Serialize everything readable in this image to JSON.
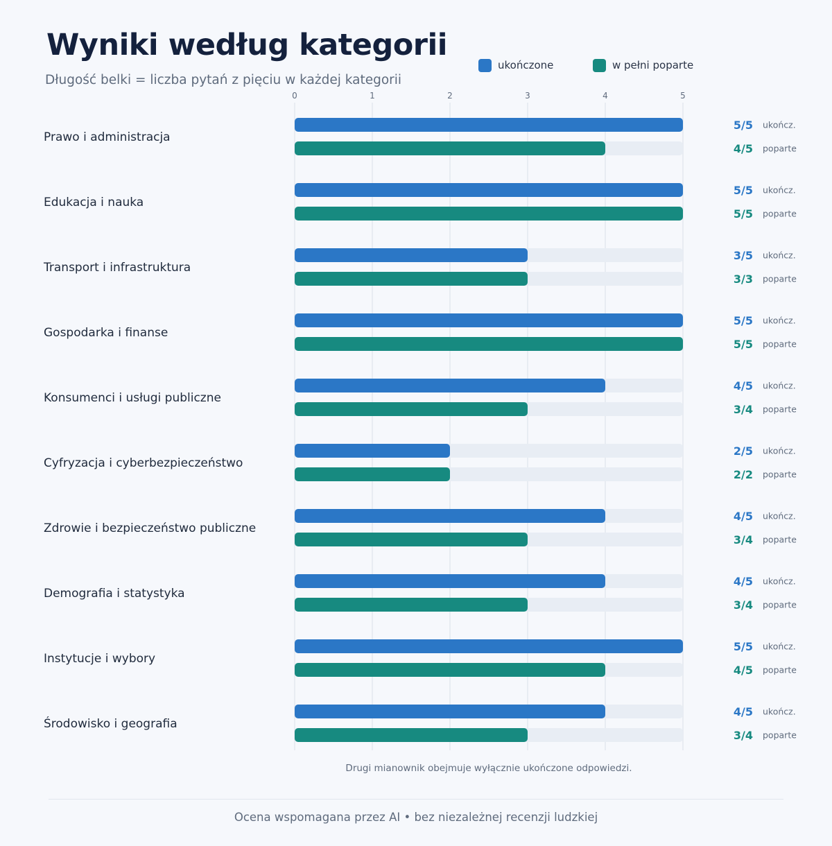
{
  "chart_data": {
    "type": "bar",
    "orientation": "horizontal",
    "title": "Wyniki według kategorii",
    "subtitle": "Długość belki = liczba pytań z pięciu w każdej kategorii",
    "xlim": [
      0,
      5
    ],
    "x_ticks": [
      "0",
      "1",
      "2",
      "3",
      "4",
      "5"
    ],
    "grid": true,
    "legend_position": "top-right",
    "series": [
      {
        "name": "ukończone",
        "color": "#2b77c6",
        "short_label": "ukończ."
      },
      {
        "name": "w pełni poparte",
        "color": "#178a80",
        "short_label": "poparte"
      }
    ],
    "categories": [
      {
        "name": "Prawo i administracja",
        "completed": 5,
        "completed_label": "5/5",
        "supported": 4,
        "supported_label": "4/5"
      },
      {
        "name": "Edukacja i nauka",
        "completed": 5,
        "completed_label": "5/5",
        "supported": 5,
        "supported_label": "5/5"
      },
      {
        "name": "Transport i infrastruktura",
        "completed": 3,
        "completed_label": "3/5",
        "supported": 3,
        "supported_label": "3/3"
      },
      {
        "name": "Gospodarka i finanse",
        "completed": 5,
        "completed_label": "5/5",
        "supported": 5,
        "supported_label": "5/5"
      },
      {
        "name": "Konsumenci i usługi publiczne",
        "completed": 4,
        "completed_label": "4/5",
        "supported": 3,
        "supported_label": "3/4"
      },
      {
        "name": "Cyfryzacja i cyberbezpieczeństwo",
        "completed": 2,
        "completed_label": "2/5",
        "supported": 2,
        "supported_label": "2/2"
      },
      {
        "name": "Zdrowie i bezpieczeństwo publiczne",
        "completed": 4,
        "completed_label": "4/5",
        "supported": 3,
        "supported_label": "3/4"
      },
      {
        "name": "Demografia i statystyka",
        "completed": 4,
        "completed_label": "4/5",
        "supported": 3,
        "supported_label": "3/4"
      },
      {
        "name": "Instytucje i wybory",
        "completed": 5,
        "completed_label": "5/5",
        "supported": 4,
        "supported_label": "4/5"
      },
      {
        "name": "Środowisko i geografia",
        "completed": 4,
        "completed_label": "4/5",
        "supported": 3,
        "supported_label": "3/4"
      }
    ],
    "footnote": "Drugi mianownik obejmuje wyłącznie ukończone odpowiedzi."
  },
  "credit": "Ocena wspomagana przez AI • bez niezależnej recenzji ludzkiej",
  "colors": {
    "title": "#14213d",
    "label": "#1f2a3c",
    "track": "#e8edf4",
    "grid": "#e3e8ef",
    "muted": "#5f6b7d"
  }
}
